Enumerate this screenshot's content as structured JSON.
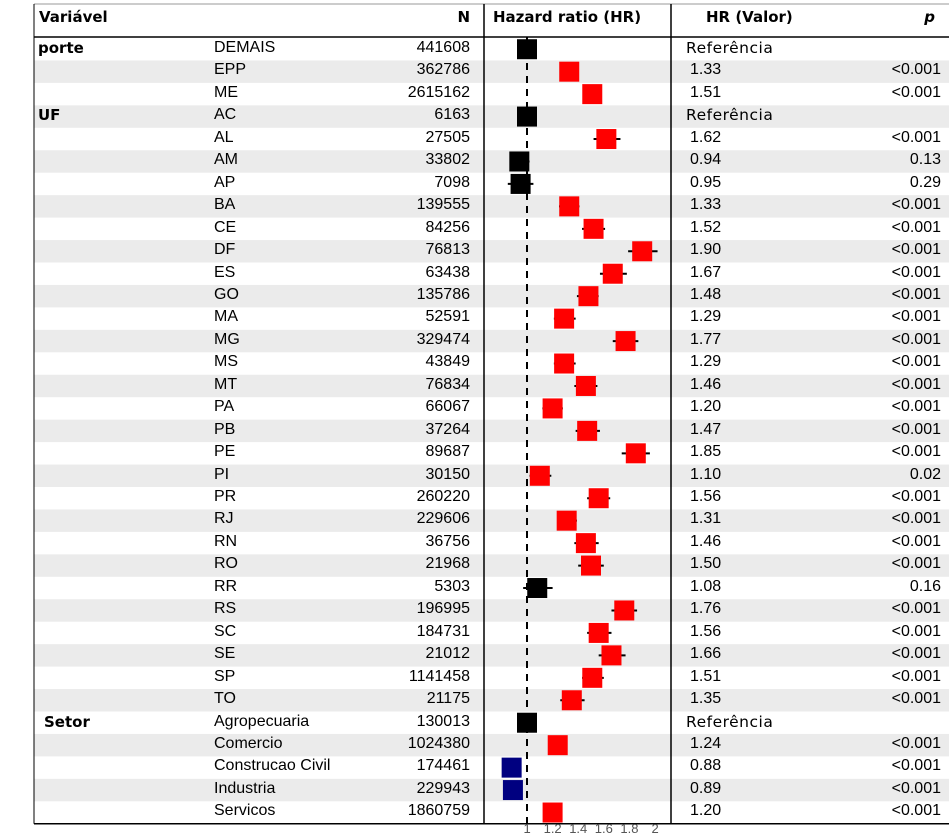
{
  "headers": {
    "variable": "Variável",
    "n": "N",
    "hr_plot": "Hazard ratio (HR)",
    "hr_value": "HR (Valor)",
    "p": "p"
  },
  "axis_ticks": [
    "1",
    "1.2",
    "1.4",
    "1.6",
    "1.8",
    "2"
  ],
  "colors": {
    "significant_increase": "#ff0000",
    "reference_or_ns": "#000000",
    "significant_decrease": "#000080",
    "row_stripe": "#ebebeb"
  },
  "chart_data": {
    "type": "forest",
    "xlabel": "Hazard ratio (HR)",
    "x_ticks": [
      1,
      1.2,
      1.4,
      1.6,
      1.8,
      2
    ],
    "reference_line": 1,
    "rows": [
      {
        "group": "porte",
        "label": "DEMAIS",
        "n": "441608",
        "hr": 1.0,
        "hr_text": "Referência",
        "p": "",
        "ci": null,
        "color": "black"
      },
      {
        "group": "",
        "label": "EPP",
        "n": "362786",
        "hr": 1.33,
        "hr_text": "1.33",
        "p": "<0.001",
        "ci": null,
        "color": "red"
      },
      {
        "group": "",
        "label": "ME",
        "n": "2615162",
        "hr": 1.51,
        "hr_text": "1.51",
        "p": "<0.001",
        "ci": null,
        "color": "red"
      },
      {
        "group": "UF",
        "label": "AC",
        "n": "6163",
        "hr": 1.0,
        "hr_text": "Referência",
        "p": "",
        "ci": null,
        "color": "black"
      },
      {
        "group": "",
        "label": "AL",
        "n": "27505",
        "hr": 1.62,
        "hr_text": "1.62",
        "p": "<0.001",
        "ci": [
          1.52,
          1.73
        ],
        "color": "red"
      },
      {
        "group": "",
        "label": "AM",
        "n": "33802",
        "hr": 0.94,
        "hr_text": "0.94",
        "p": "0.13",
        "ci": [
          0.87,
          1.02
        ],
        "color": "black"
      },
      {
        "group": "",
        "label": "AP",
        "n": "7098",
        "hr": 0.95,
        "hr_text": "0.95",
        "p": "0.29",
        "ci": [
          0.85,
          1.05
        ],
        "color": "black"
      },
      {
        "group": "",
        "label": "BA",
        "n": "139555",
        "hr": 1.33,
        "hr_text": "1.33",
        "p": "<0.001",
        "ci": [
          1.25,
          1.41
        ],
        "color": "red"
      },
      {
        "group": "",
        "label": "CE",
        "n": "84256",
        "hr": 1.52,
        "hr_text": "1.52",
        "p": "<0.001",
        "ci": [
          1.43,
          1.61
        ],
        "color": "red"
      },
      {
        "group": "",
        "label": "DF",
        "n": "76813",
        "hr": 1.9,
        "hr_text": "1.90",
        "p": "<0.001",
        "ci": [
          1.79,
          2.02
        ],
        "color": "red"
      },
      {
        "group": "",
        "label": "ES",
        "n": "63438",
        "hr": 1.67,
        "hr_text": "1.67",
        "p": "<0.001",
        "ci": [
          1.57,
          1.78
        ],
        "color": "red"
      },
      {
        "group": "",
        "label": "GO",
        "n": "135786",
        "hr": 1.48,
        "hr_text": "1.48",
        "p": "<0.001",
        "ci": [
          1.39,
          1.56
        ],
        "color": "red"
      },
      {
        "group": "",
        "label": "MA",
        "n": "52591",
        "hr": 1.29,
        "hr_text": "1.29",
        "p": "<0.001",
        "ci": [
          1.21,
          1.38
        ],
        "color": "red"
      },
      {
        "group": "",
        "label": "MG",
        "n": "329474",
        "hr": 1.77,
        "hr_text": "1.77",
        "p": "<0.001",
        "ci": [
          1.67,
          1.87
        ],
        "color": "red"
      },
      {
        "group": "",
        "label": "MS",
        "n": "43849",
        "hr": 1.29,
        "hr_text": "1.29",
        "p": "<0.001",
        "ci": [
          1.21,
          1.38
        ],
        "color": "red"
      },
      {
        "group": "",
        "label": "MT",
        "n": "76834",
        "hr": 1.46,
        "hr_text": "1.46",
        "p": "<0.001",
        "ci": [
          1.37,
          1.55
        ],
        "color": "red"
      },
      {
        "group": "",
        "label": "PA",
        "n": "66067",
        "hr": 1.2,
        "hr_text": "1.20",
        "p": "<0.001",
        "ci": [
          1.12,
          1.28
        ],
        "color": "red"
      },
      {
        "group": "",
        "label": "PB",
        "n": "37264",
        "hr": 1.47,
        "hr_text": "1.47",
        "p": "<0.001",
        "ci": [
          1.38,
          1.57
        ],
        "color": "red"
      },
      {
        "group": "",
        "label": "PE",
        "n": "89687",
        "hr": 1.85,
        "hr_text": "1.85",
        "p": "<0.001",
        "ci": [
          1.74,
          1.96
        ],
        "color": "red"
      },
      {
        "group": "",
        "label": "PI",
        "n": "30150",
        "hr": 1.1,
        "hr_text": "1.10",
        "p": "0.02",
        "ci": [
          1.02,
          1.19
        ],
        "color": "red"
      },
      {
        "group": "",
        "label": "PR",
        "n": "260220",
        "hr": 1.56,
        "hr_text": "1.56",
        "p": "<0.001",
        "ci": [
          1.47,
          1.65
        ],
        "color": "red"
      },
      {
        "group": "",
        "label": "RJ",
        "n": "229606",
        "hr": 1.31,
        "hr_text": "1.31",
        "p": "<0.001",
        "ci": [
          1.24,
          1.39
        ],
        "color": "red"
      },
      {
        "group": "",
        "label": "RN",
        "n": "36756",
        "hr": 1.46,
        "hr_text": "1.46",
        "p": "<0.001",
        "ci": [
          1.37,
          1.56
        ],
        "color": "red"
      },
      {
        "group": "",
        "label": "RO",
        "n": "21968",
        "hr": 1.5,
        "hr_text": "1.50",
        "p": "<0.001",
        "ci": [
          1.4,
          1.6
        ],
        "color": "red"
      },
      {
        "group": "",
        "label": "RR",
        "n": "5303",
        "hr": 1.08,
        "hr_text": "1.08",
        "p": "0.16",
        "ci": [
          0.97,
          1.2
        ],
        "color": "black"
      },
      {
        "group": "",
        "label": "RS",
        "n": "196995",
        "hr": 1.76,
        "hr_text": "1.76",
        "p": "<0.001",
        "ci": [
          1.66,
          1.86
        ],
        "color": "red"
      },
      {
        "group": "",
        "label": "SC",
        "n": "184731",
        "hr": 1.56,
        "hr_text": "1.56",
        "p": "<0.001",
        "ci": [
          1.47,
          1.66
        ],
        "color": "red"
      },
      {
        "group": "",
        "label": "SE",
        "n": "21012",
        "hr": 1.66,
        "hr_text": "1.66",
        "p": "<0.001",
        "ci": [
          1.56,
          1.77
        ],
        "color": "red"
      },
      {
        "group": "",
        "label": "SP",
        "n": "1141458",
        "hr": 1.51,
        "hr_text": "1.51",
        "p": "<0.001",
        "ci": [
          1.43,
          1.6
        ],
        "color": "red"
      },
      {
        "group": "",
        "label": "TO",
        "n": "21175",
        "hr": 1.35,
        "hr_text": "1.35",
        "p": "<0.001",
        "ci": [
          1.26,
          1.45
        ],
        "color": "red"
      },
      {
        "group": "Setor",
        "label": "Agropecuaria",
        "n": "130013",
        "hr": 1.0,
        "hr_text": "Referência",
        "p": "",
        "ci": null,
        "color": "black"
      },
      {
        "group": "",
        "label": "Comercio",
        "n": "1024380",
        "hr": 1.24,
        "hr_text": "1.24",
        "p": "<0.001",
        "ci": null,
        "color": "red"
      },
      {
        "group": "",
        "label": "Construcao Civil",
        "n": "174461",
        "hr": 0.88,
        "hr_text": "0.88",
        "p": "<0.001",
        "ci": null,
        "color": "blue"
      },
      {
        "group": "",
        "label": "Industria",
        "n": "229943",
        "hr": 0.89,
        "hr_text": "0.89",
        "p": "<0.001",
        "ci": null,
        "color": "blue"
      },
      {
        "group": "",
        "label": "Servicos",
        "n": "1860759",
        "hr": 1.2,
        "hr_text": "1.20",
        "p": "<0.001",
        "ci": null,
        "color": "red"
      }
    ]
  }
}
